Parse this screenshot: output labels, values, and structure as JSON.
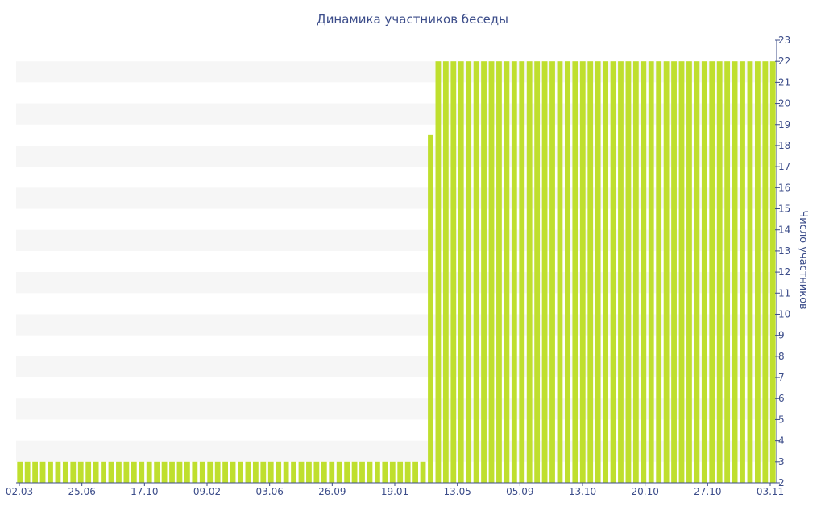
{
  "chart_data": {
    "type": "bar",
    "title": "Динамика участников беседы",
    "xlabel": "",
    "ylabel": "Число участников",
    "ylim": [
      2,
      23
    ],
    "y_ticks": [
      2,
      3,
      4,
      5,
      6,
      7,
      8,
      9,
      10,
      11,
      12,
      13,
      14,
      15,
      16,
      17,
      18,
      19,
      20,
      21,
      22,
      23
    ],
    "x_tick_labels": [
      "02.03",
      "25.06",
      "17.10",
      "09.02",
      "03.06",
      "26.09",
      "19.01",
      "13.05",
      "05.09",
      "13.10",
      "20.10",
      "27.10",
      "03.11"
    ],
    "y_axis_position": "right",
    "grid": "alternating horizontal bands",
    "bar_color": "#bfdf2e",
    "values": [
      3,
      3,
      3,
      3,
      3,
      3,
      3,
      3,
      3,
      3,
      3,
      3,
      3,
      3,
      3,
      3,
      3,
      3,
      3,
      3,
      3,
      3,
      3,
      3,
      3,
      3,
      3,
      3,
      3,
      3,
      3,
      3,
      3,
      3,
      3,
      3,
      3,
      3,
      3,
      3,
      3,
      3,
      3,
      3,
      3,
      3,
      3,
      3,
      3,
      3,
      3,
      3,
      3,
      3,
      18.5,
      22,
      22,
      22,
      22,
      22,
      22,
      22,
      22,
      22,
      22,
      22,
      22,
      22,
      22,
      22,
      22,
      22,
      22,
      22,
      22,
      22,
      22,
      22,
      22,
      22,
      22,
      22,
      22,
      22,
      22,
      22,
      22,
      22,
      22,
      22,
      22,
      22,
      22,
      22,
      22,
      22,
      22,
      22,
      22,
      22
    ]
  }
}
